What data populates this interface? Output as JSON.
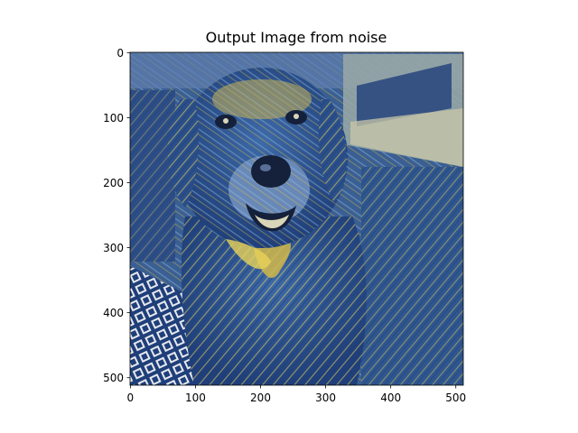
{
  "figure": {
    "title": "Output Image from noise",
    "image_subject": "stylized painting of a smiling golden retriever in blue and yellow brush strokes",
    "colors": {
      "deep_blue": "#1f3f7a",
      "mid_blue": "#3d6aa8",
      "light_blue": "#8fb0d6",
      "ochre": "#d2b84a",
      "yellow": "#e8d25a",
      "dark": "#15203a",
      "cream": "#d9d5b8"
    }
  },
  "axes": {
    "x_ticks": [
      {
        "value": 0,
        "label": "0"
      },
      {
        "value": 100,
        "label": "100"
      },
      {
        "value": 200,
        "label": "200"
      },
      {
        "value": 300,
        "label": "300"
      },
      {
        "value": 400,
        "label": "400"
      },
      {
        "value": 500,
        "label": "500"
      }
    ],
    "y_ticks": [
      {
        "value": 0,
        "label": "0"
      },
      {
        "value": 100,
        "label": "100"
      },
      {
        "value": 200,
        "label": "200"
      },
      {
        "value": 300,
        "label": "300"
      },
      {
        "value": 400,
        "label": "400"
      },
      {
        "value": 500,
        "label": "500"
      }
    ],
    "x_range": [
      -0.5,
      511.5
    ],
    "y_range": [
      -0.5,
      511.5
    ]
  }
}
